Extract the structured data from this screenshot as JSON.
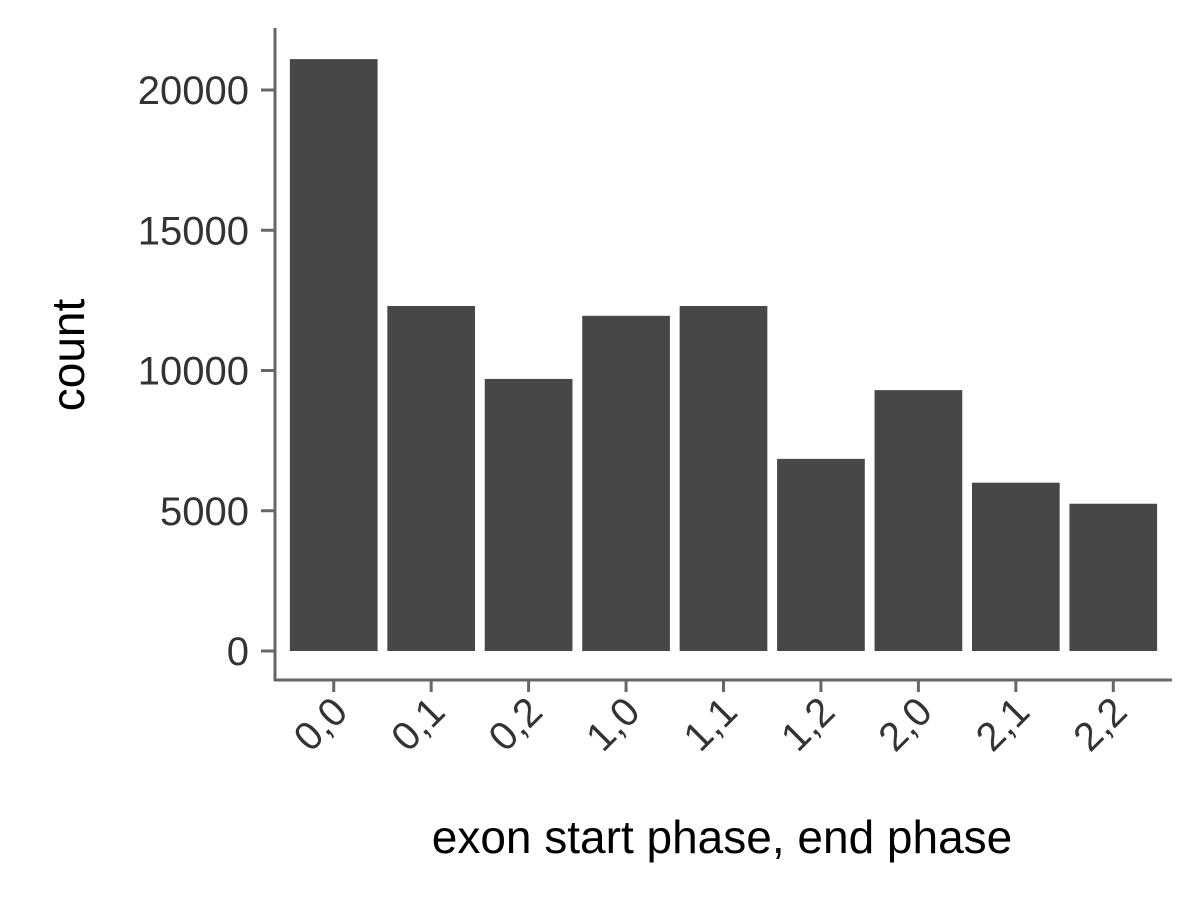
{
  "chart_data": {
    "type": "bar",
    "title": "",
    "xlabel": "exon start phase, end phase",
    "ylabel": "count",
    "categories": [
      "0,0",
      "0,1",
      "0,2",
      "1,0",
      "1,1",
      "1,2",
      "2,0",
      "2,1",
      "2,2"
    ],
    "values": [
      21100,
      12300,
      9700,
      11950,
      12300,
      6850,
      9300,
      6000,
      5250
    ],
    "ylim": [
      0,
      22000
    ],
    "yticks": [
      0,
      5000,
      10000,
      15000,
      20000
    ],
    "grid": false,
    "legend": "none",
    "bar_color": "#474747",
    "axis_color": "#666666"
  }
}
